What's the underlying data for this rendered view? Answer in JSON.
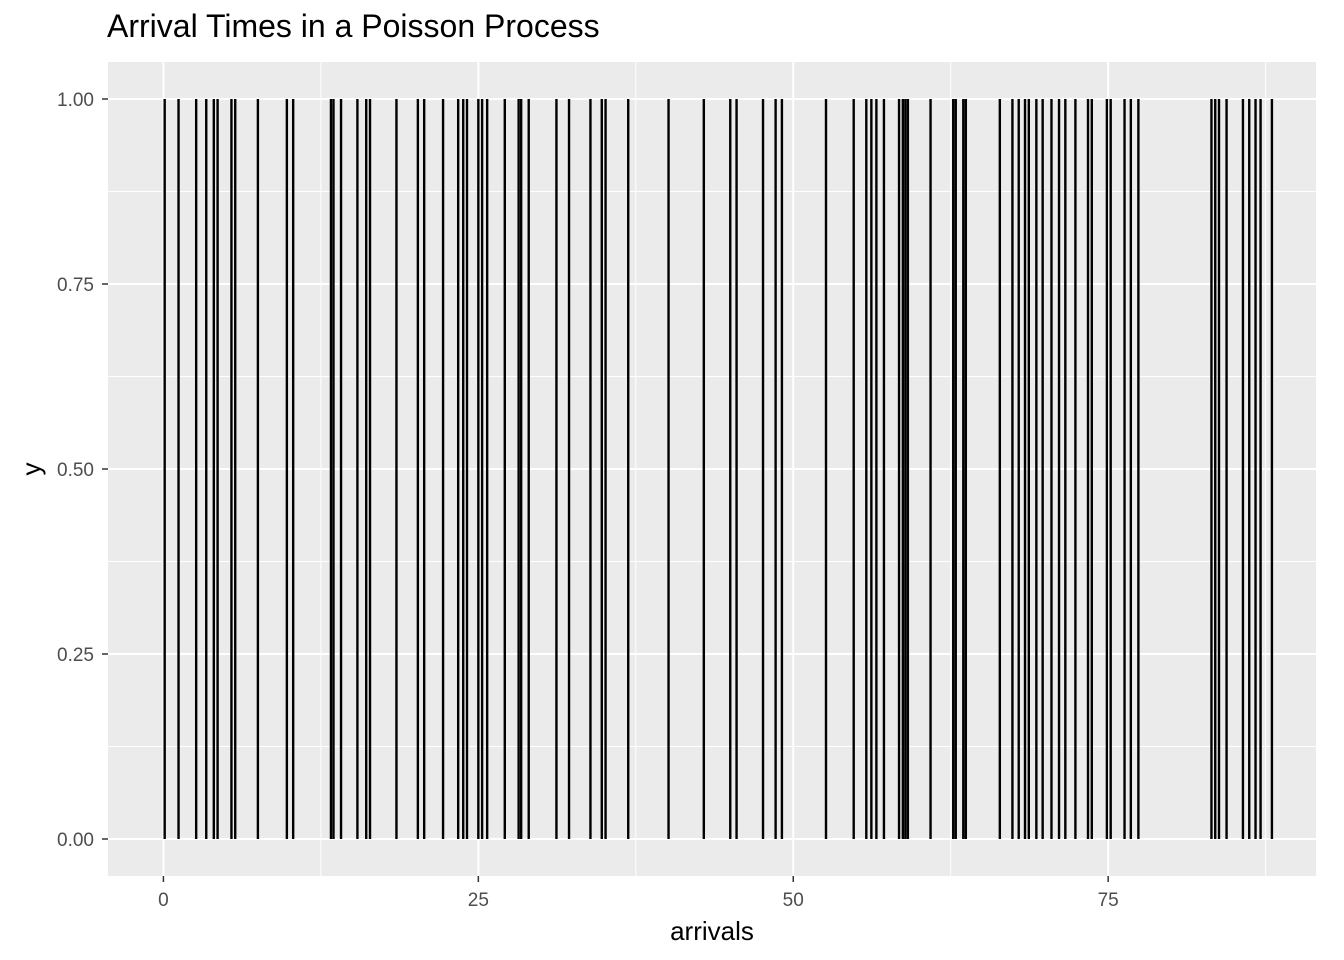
{
  "chart_data": {
    "type": "bar",
    "title": "Arrival Times in a Poisson Process",
    "xlabel": "arrivals",
    "ylabel": "y",
    "xlim": [
      -4.4,
      91.5
    ],
    "ylim": [
      -0.05,
      1.05
    ],
    "x_ticks": [
      0,
      25,
      50,
      75
    ],
    "x_tick_labels": [
      "0",
      "25",
      "50",
      "75"
    ],
    "y_ticks": [
      0,
      0.25,
      0.5,
      0.75,
      1
    ],
    "y_tick_labels": [
      "0.00",
      "0.25",
      "0.50",
      "0.75",
      "1.00"
    ],
    "grid": true,
    "panel_background": "#ebebeb",
    "grid_color": "#ffffff",
    "mark_color": "#000000",
    "segment_y": [
      0,
      1
    ],
    "arrivals": [
      0.1,
      1.2,
      2.6,
      3.4,
      4.0,
      4.3,
      5.4,
      5.7,
      7.5,
      9.8,
      10.3,
      13.3,
      13.5,
      14.1,
      15.4,
      16.1,
      16.4,
      18.5,
      20.2,
      20.7,
      22.2,
      23.4,
      23.8,
      24.1,
      25.0,
      25.3,
      25.7,
      27.1,
      28.2,
      28.4,
      29.0,
      31.2,
      32.2,
      33.9,
      34.8,
      35.1,
      36.9,
      40.1,
      42.9,
      45.0,
      45.5,
      47.6,
      48.6,
      49.1,
      52.6,
      54.8,
      55.8,
      56.2,
      56.6,
      57.2,
      58.4,
      58.7,
      58.9,
      59.1,
      60.9,
      62.7,
      62.9,
      63.5,
      63.7,
      66.4,
      67.4,
      67.9,
      68.4,
      68.7,
      69.3,
      69.8,
      70.5,
      71.1,
      71.6,
      72.4,
      73.4,
      73.7,
      74.9,
      75.2,
      76.3,
      76.8,
      77.4,
      83.2,
      83.5,
      83.8,
      84.4,
      85.7,
      86.2,
      86.7,
      87.1,
      88.0
    ]
  }
}
